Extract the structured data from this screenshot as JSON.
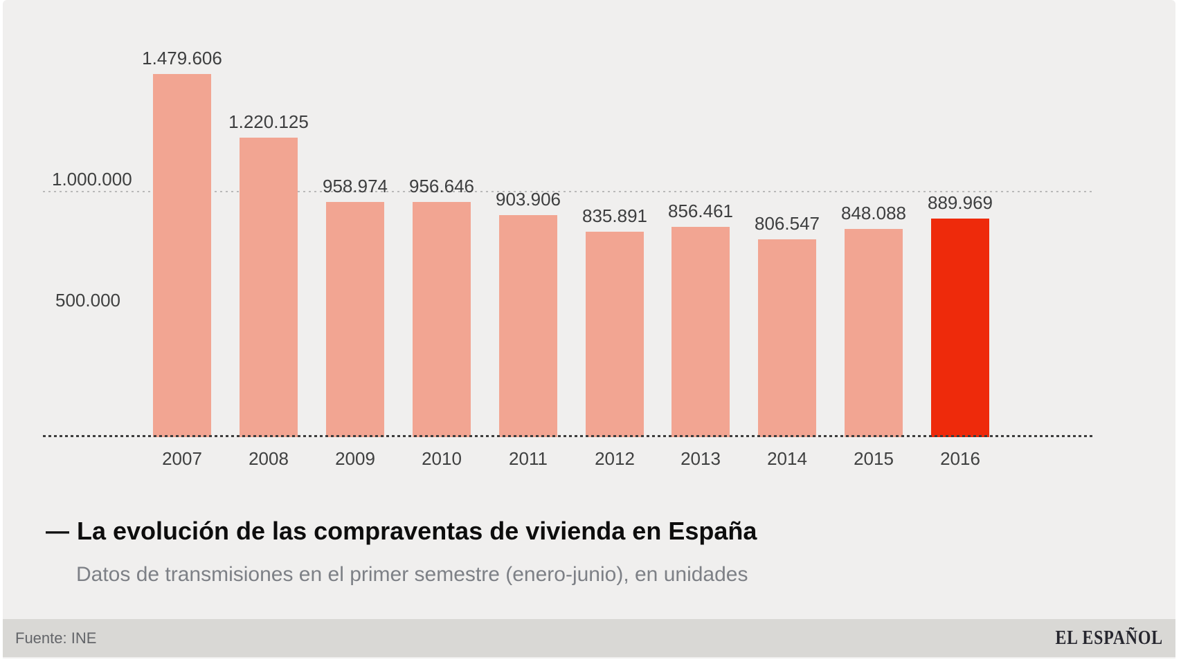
{
  "chart_data": {
    "type": "bar",
    "title": "La evolución de las compraventas de vivienda en España",
    "title_dash": "—",
    "subtitle": "Datos de transmisiones en el primer semestre (enero-junio), en unidades",
    "categories": [
      "2007",
      "2008",
      "2009",
      "2010",
      "2011",
      "2012",
      "2013",
      "2014",
      "2015",
      "2016"
    ],
    "values": [
      1479606,
      1220125,
      958974,
      956646,
      903906,
      835891,
      856461,
      806547,
      848088,
      889969
    ],
    "value_labels": [
      "1.479.606",
      "1.220.125",
      "958.974",
      "956.646",
      "903.906",
      "835.891",
      "856.461",
      "806.547",
      "848.088",
      "889.969"
    ],
    "xlabel": "",
    "ylabel": "",
    "ylim": [
      0,
      1550000
    ],
    "yticks": [
      {
        "value": 1000000,
        "label": "1.000.000",
        "gridline": "dotted"
      },
      {
        "value": 500000,
        "label": "500.000",
        "gridline": "none"
      }
    ],
    "legend": "none",
    "grid": "horizontal dotted line at 1.000.000 and dotted baseline at 0",
    "bar_color": "#F2A592",
    "highlight_color": "#EE2A0B",
    "highlight_index": 9
  },
  "footer": {
    "source": "Fuente: INE",
    "brand": "EL ESPAÑOL"
  },
  "colors": {
    "background": "#F0EFEE",
    "footer_bar": "#D9D8D5",
    "gridline": "#B9B9B9",
    "baseline": "#3C3C3C",
    "label_text": "#3F4040",
    "title_text": "#0D0D0D",
    "subtitle_text": "#7D8086"
  }
}
